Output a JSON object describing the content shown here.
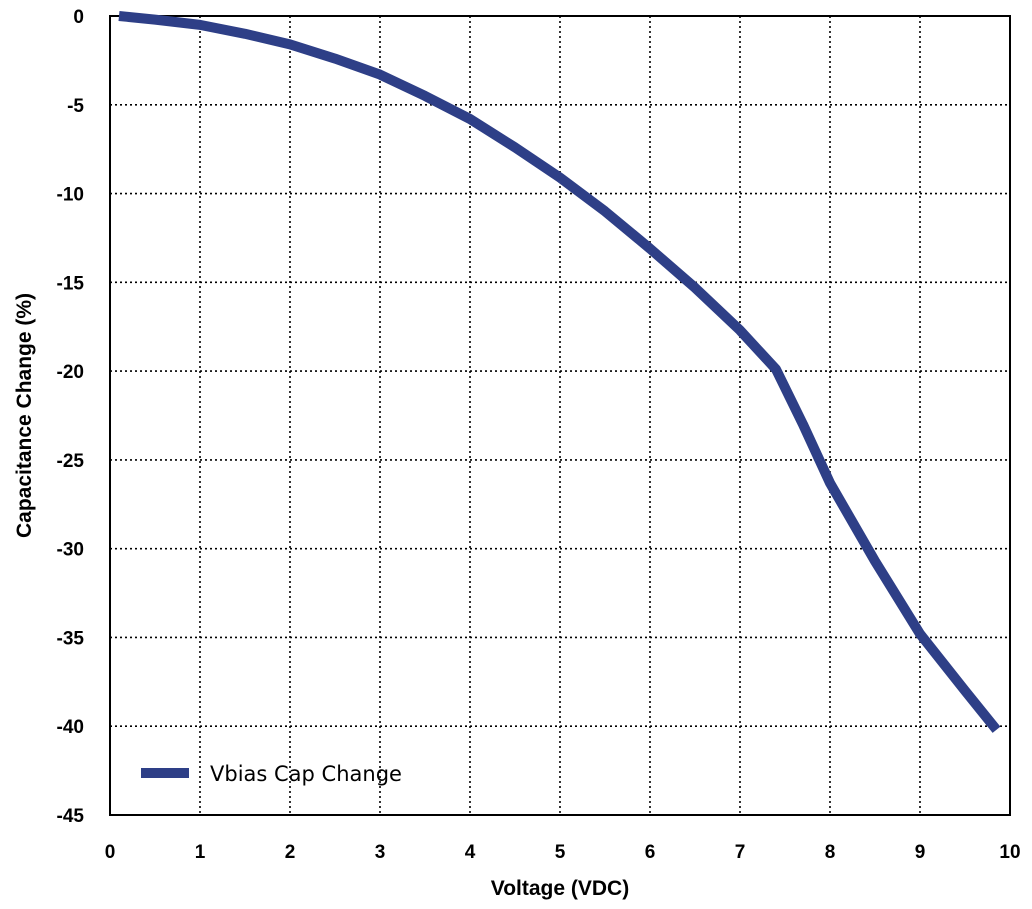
{
  "chart_data": {
    "type": "line",
    "title": "",
    "xlabel": "Voltage (VDC)",
    "ylabel": "Capacitance Change (%)",
    "xlim": [
      0,
      10
    ],
    "ylim": [
      -45,
      0
    ],
    "x_ticks": [
      0,
      1,
      2,
      3,
      4,
      5,
      6,
      7,
      8,
      9,
      10
    ],
    "y_ticks": [
      0,
      -5,
      -10,
      -15,
      -20,
      -25,
      -30,
      -35,
      -40,
      -45
    ],
    "x_tick_labels": [
      "0",
      "1",
      "2",
      "3",
      "4",
      "5",
      "6",
      "7",
      "8",
      "9",
      "10"
    ],
    "y_tick_labels": [
      "0",
      "-5",
      "-10",
      "-15",
      "-20",
      "-25",
      "-30",
      "-35",
      "-40",
      "-45"
    ],
    "grid": true,
    "legend_position": "bottom-left",
    "series": [
      {
        "name": "Vbias Cap Change",
        "color": "#2E3F87",
        "x": [
          0.1,
          0.5,
          1.0,
          1.5,
          2.0,
          2.5,
          3.0,
          3.5,
          4.0,
          4.5,
          5.0,
          5.5,
          6.0,
          6.5,
          7.0,
          7.4,
          7.7,
          8.0,
          8.5,
          9.0,
          9.5,
          9.85
        ],
        "y": [
          0.0,
          -0.2,
          -0.5,
          -1.0,
          -1.6,
          -2.4,
          -3.3,
          -4.5,
          -5.8,
          -7.4,
          -9.1,
          -11.0,
          -13.1,
          -15.3,
          -17.7,
          -19.9,
          -23.0,
          -26.3,
          -30.7,
          -34.8,
          -38.0,
          -40.2
        ]
      }
    ]
  }
}
